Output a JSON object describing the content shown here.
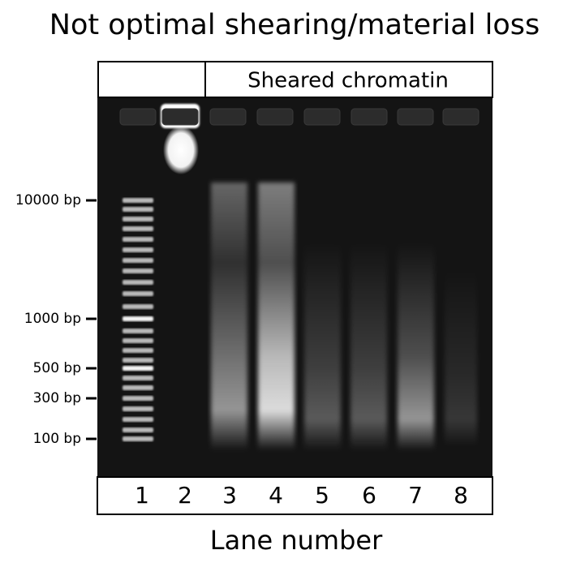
{
  "title": "Not optimal shearing/material loss",
  "header": "Sheared chromatin",
  "markers": [
    "10000 bp",
    "1000 bp",
    "500 bp",
    "300 bp",
    "100 bp"
  ],
  "lanes": [
    "1",
    "2",
    "3",
    "4",
    "5",
    "6",
    "7",
    "8"
  ],
  "xlabel": "Lane number"
}
